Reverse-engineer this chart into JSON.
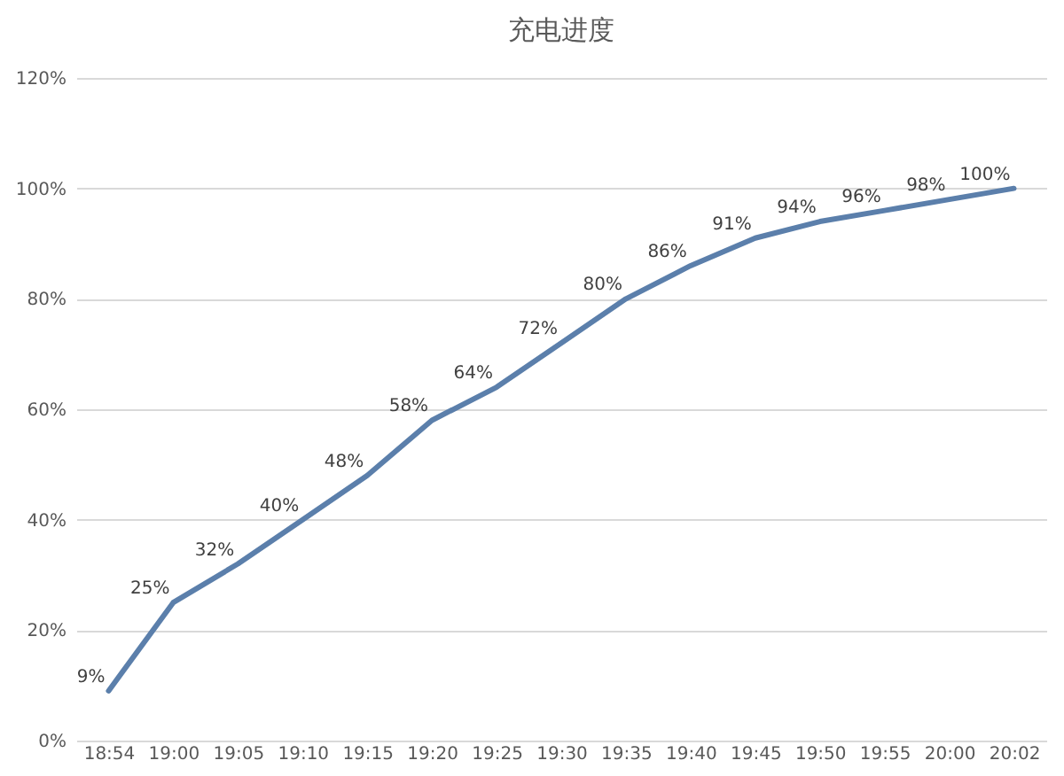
{
  "chart_data": {
    "type": "line",
    "title": "充电进度",
    "categories": [
      "18:54",
      "19:00",
      "19:05",
      "19:10",
      "19:15",
      "19:20",
      "19:25",
      "19:30",
      "19:35",
      "19:40",
      "19:45",
      "19:50",
      "19:55",
      "20:00",
      "20:02"
    ],
    "series": [
      {
        "color": "#5b7fab",
        "values": [
          9,
          25,
          32,
          40,
          48,
          58,
          64,
          72,
          80,
          86,
          91,
          94,
          96,
          98,
          100
        ],
        "value_labels": [
          "9%",
          "25%",
          "32%",
          "40%",
          "48%",
          "58%",
          "64%",
          "72%",
          "80%",
          "86%",
          "91%",
          "94%",
          "96%",
          "98%",
          "100%"
        ]
      }
    ],
    "ylim": [
      0,
      120
    ],
    "yticks": [
      {
        "value": 0,
        "label": "0%"
      },
      {
        "value": 20,
        "label": "20%"
      },
      {
        "value": 40,
        "label": "40%"
      },
      {
        "value": 60,
        "label": "60%"
      },
      {
        "value": 80,
        "label": "80%"
      },
      {
        "value": 100,
        "label": "100%"
      },
      {
        "value": 120,
        "label": "120%"
      }
    ],
    "grid": "y",
    "marker": "none",
    "line_style": "solid",
    "legend": false
  }
}
